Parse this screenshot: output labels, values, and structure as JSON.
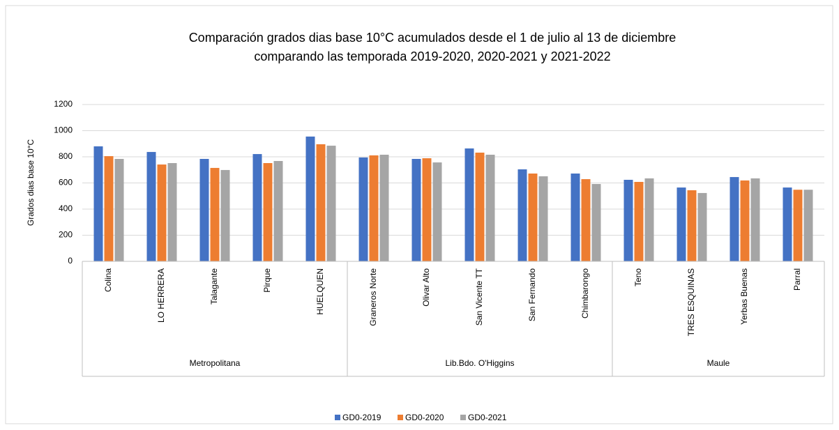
{
  "chart_data": {
    "type": "bar",
    "title": [
      "Comparación grados dias base 10°C acumulados desde el 1 de julio al 13 de diciembre",
      "comparando las temporada 2019-2020, 2020-2021 y 2021-2022"
    ],
    "y_label": "Grados dias base 10°C",
    "categories": [
      "Colina",
      "LO HERRERA",
      "Talagante",
      "Pirque",
      "HUELQUEN",
      "Graneros Norte",
      "Olivar Alto",
      "San Vicente TT",
      "San Fernando",
      "Chimbarongo",
      "Teno",
      "TRES ESQUINAS",
      "Yerbas Buenas",
      "Parral"
    ],
    "groups": [
      {
        "name": "Metropolitana",
        "count": 5
      },
      {
        "name": "Lib.Bdo. O'Higgins",
        "count": 5
      },
      {
        "name": "Maule",
        "count": 4
      }
    ],
    "series": [
      {
        "name": "GD0-2019",
        "color": "#4472c4",
        "values": [
          880,
          837,
          784,
          821,
          955,
          795,
          784,
          864,
          704,
          672,
          624,
          565,
          645,
          565
        ]
      },
      {
        "name": "GD0-2020",
        "color": "#ed7d31",
        "values": [
          805,
          741,
          715,
          752,
          896,
          811,
          789,
          832,
          672,
          629,
          608,
          544,
          619,
          548
        ]
      },
      {
        "name": "GD0-2021",
        "color": "#a5a5a5",
        "values": [
          784,
          752,
          699,
          768,
          885,
          816,
          757,
          816,
          651,
          592,
          635,
          523,
          635,
          548
        ]
      }
    ],
    "ylim": [
      0,
      1200
    ],
    "yticks": [
      0,
      200,
      400,
      600,
      800,
      1000,
      1200
    ],
    "grid": true,
    "legend": "bottom"
  }
}
